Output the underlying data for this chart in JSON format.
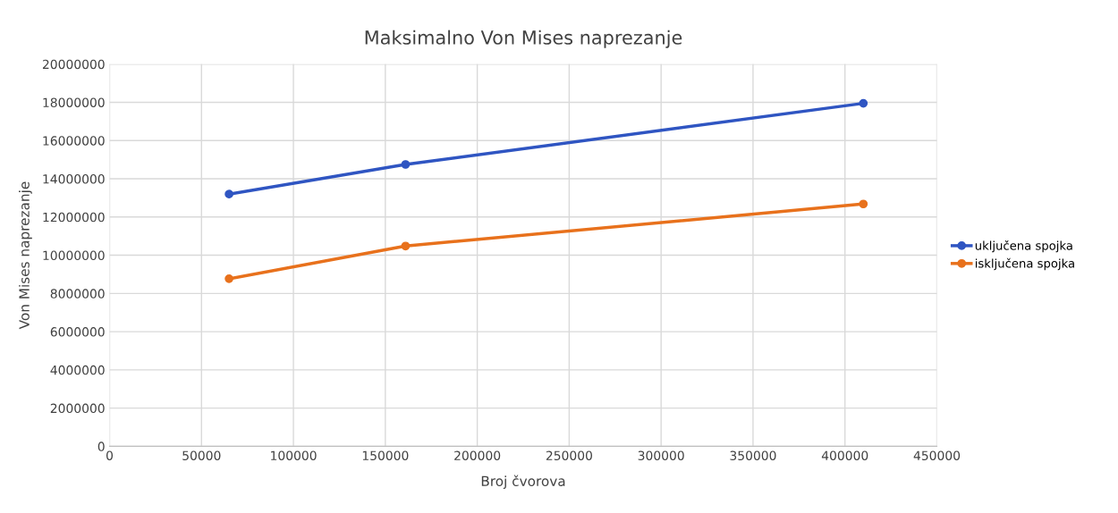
{
  "chart_data": {
    "type": "line",
    "title": "Maksimalno Von Mises naprezanje",
    "xlabel": "Broj čvorova",
    "ylabel": "Von Mises naprezanje",
    "series": [
      {
        "name": "uključena spojka",
        "color": "#2f55c2",
        "x": [
          65000,
          161000,
          410000
        ],
        "values": [
          13200000,
          14750000,
          17950000
        ]
      },
      {
        "name": "isključena spojka",
        "color": "#e8711c",
        "x": [
          65000,
          161000,
          410000
        ],
        "values": [
          8770000,
          10480000,
          12680000
        ]
      }
    ],
    "xlim": [
      0,
      450000
    ],
    "xticks": [
      0,
      50000,
      100000,
      150000,
      200000,
      250000,
      300000,
      350000,
      400000,
      450000
    ],
    "ylim": [
      0,
      20000000
    ],
    "yticks": [
      0,
      2000000,
      4000000,
      6000000,
      8000000,
      10000000,
      12000000,
      14000000,
      16000000,
      18000000,
      20000000
    ],
    "grid": true,
    "legend": "right",
    "marker": "circle",
    "line_style": "solid"
  }
}
